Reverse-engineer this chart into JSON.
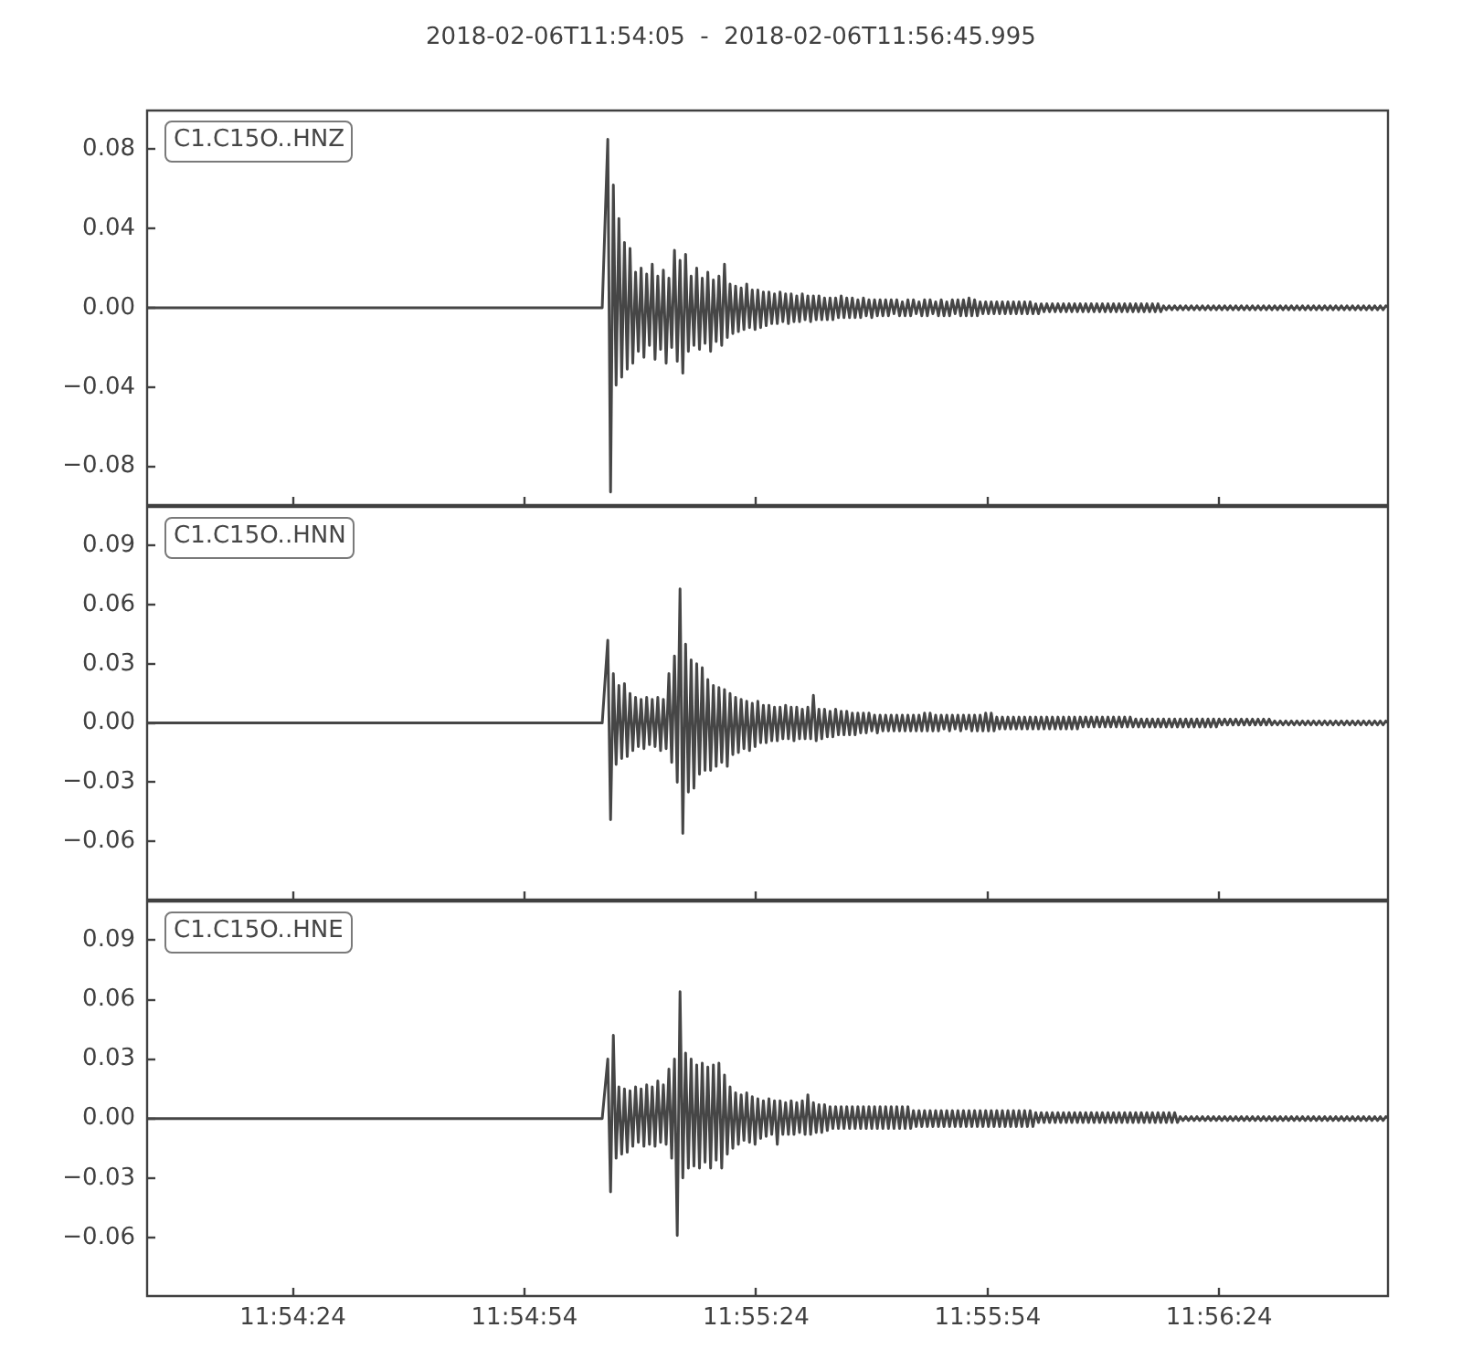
{
  "chart_data": [
    {
      "type": "line",
      "title": "2018-02-06T11:54:05  -  2018-02-06T11:56:45.995",
      "x": [
        11.901389,
        11.9178,
        11.918,
        11.9181,
        11.9182,
        11.9183,
        11.9184,
        11.9185,
        11.9186,
        11.9187,
        11.9188,
        11.9189,
        11.919,
        11.9191,
        11.9192,
        11.9193,
        11.9194,
        11.9195,
        11.9196,
        11.9197,
        11.9198,
        11.9199,
        11.92,
        11.9201,
        11.9202,
        11.9203,
        11.9204,
        11.9205,
        11.9206,
        11.9207,
        11.9208,
        11.9209,
        11.921,
        11.9211,
        11.9212,
        11.9213,
        11.9214,
        11.9215,
        11.9216,
        11.9217,
        11.9218,
        11.9219,
        11.922,
        11.9221,
        11.9222,
        11.9223,
        11.9224,
        11.9225,
        11.9226,
        11.9227,
        11.9228,
        11.9229,
        11.923,
        11.9231,
        11.9232,
        11.9233,
        11.9234,
        11.9235,
        11.9236,
        11.9237,
        11.9238,
        11.9239,
        11.924,
        11.9241,
        11.9242,
        11.9243,
        11.9244,
        11.9245,
        11.9246,
        11.9247,
        11.9248,
        11.9249,
        11.925,
        11.9251,
        11.9252,
        11.9253,
        11.9254,
        11.9255,
        11.9256,
        11.9257,
        11.9258,
        11.9259,
        11.926,
        11.9261,
        11.9262,
        11.9263,
        11.9264,
        11.9265,
        11.9266,
        11.9267,
        11.9268,
        11.9269,
        11.927,
        11.9271,
        11.9272,
        11.9273,
        11.9274,
        11.9275,
        11.9276,
        11.9277,
        11.9278,
        11.9279,
        11.928,
        11.9281,
        11.9282,
        11.9283,
        11.9284,
        11.9285,
        11.9286,
        11.9287,
        11.9288,
        11.9289,
        11.929,
        11.9291,
        11.9292,
        11.9293,
        11.9294,
        11.9295,
        11.9296,
        11.9297,
        11.9298,
        11.9299,
        11.93,
        11.9301,
        11.9302,
        11.9303,
        11.9304,
        11.9305,
        11.9306,
        11.9307,
        11.9308,
        11.9309,
        11.931,
        11.9311,
        11.9312,
        11.9313,
        11.9314,
        11.9315,
        11.9316,
        11.9317,
        11.9318,
        11.9319,
        11.932,
        11.9321,
        11.9322,
        11.9323,
        11.9324,
        11.9325,
        11.9326,
        11.9327,
        11.9328,
        11.9329,
        11.933,
        11.9331,
        11.9332,
        11.9333,
        11.9334,
        11.9335,
        11.9336,
        11.9337,
        11.9338,
        11.9339,
        11.934,
        11.9341,
        11.9342,
        11.9343,
        11.9344,
        11.9345,
        11.9346,
        11.9347,
        11.9348,
        11.9349,
        11.935,
        11.9351,
        11.9352,
        11.9353,
        11.9354,
        11.9355,
        11.9356,
        11.9357,
        11.9358,
        11.9359,
        11.936,
        11.9361,
        11.9362,
        11.9363,
        11.9364,
        11.9365,
        11.9366,
        11.9367,
        11.9368,
        11.9369,
        11.937,
        11.9371,
        11.9372,
        11.9373,
        11.9374,
        11.9375,
        11.9376,
        11.9377,
        11.9378,
        11.9379,
        11.938,
        11.9381,
        11.9382,
        11.9383,
        11.9384,
        11.9385,
        11.9386,
        11.9387,
        11.9388,
        11.9389,
        11.939,
        11.9391,
        11.9392,
        11.9393,
        11.9394,
        11.9395,
        11.9396,
        11.9397,
        11.9398,
        11.9399,
        11.94,
        11.9401,
        11.9402,
        11.9403,
        11.9404,
        11.9405,
        11.9406,
        11.9407,
        11.9408,
        11.9409,
        11.941,
        11.9411,
        11.9412,
        11.9413,
        11.9414,
        11.9415,
        11.9416,
        11.9417,
        11.9418,
        11.9419,
        11.942,
        11.9421,
        11.9422,
        11.9423,
        11.9424,
        11.9425,
        11.9426,
        11.9427,
        11.9428,
        11.9429,
        11.943,
        11.9431,
        11.9432,
        11.9433,
        11.9434,
        11.9435,
        11.9436,
        11.9437,
        11.9438,
        11.9439,
        11.944,
        11.9441,
        11.9442,
        11.9443,
        11.9444,
        11.9445,
        11.9446,
        11.9447,
        11.9448,
        11.9449,
        11.945,
        11.9451,
        11.9452,
        11.9453,
        11.9454,
        11.9455,
        11.9456,
        11.9457,
        11.9458,
        11.9459,
        11.946,
        11.94611
      ],
      "series": [
        {
          "name": "C1.C15O..HNZ",
          "color": "#464646",
          "values": [
            0,
            0,
            0.085,
            -0.093,
            0.062,
            -0.039,
            0.045,
            -0.035,
            0.033,
            -0.031,
            0.03,
            -0.028,
            0.018,
            -0.022,
            0.02,
            -0.025,
            0.017,
            -0.019,
            0.022,
            -0.026,
            0.016,
            -0.021,
            0.019,
            -0.028,
            0.015,
            -0.02,
            0.029,
            -0.027,
            0.024,
            -0.033,
            0.027,
            -0.022,
            0.016,
            -0.019,
            0.02,
            -0.021,
            0.015,
            -0.018,
            0.018,
            -0.022,
            0.014,
            -0.017,
            0.016,
            -0.019,
            0.022,
            -0.015,
            0.012,
            -0.013,
            0.011,
            -0.012,
            0.01,
            -0.011,
            0.012,
            -0.01,
            0.009,
            -0.011,
            0.009,
            -0.01,
            0.008,
            -0.009,
            0.008,
            -0.008,
            0.007,
            -0.008,
            0.008,
            -0.007,
            0.007,
            -0.008,
            0.007,
            -0.007,
            0.006,
            -0.007,
            0.007,
            -0.006,
            0.006,
            -0.007,
            0.006,
            -0.006,
            0.006,
            -0.006,
            0.005,
            -0.006,
            0.005,
            -0.006,
            0.005,
            -0.005,
            0.006,
            -0.005,
            0.005,
            -0.005,
            0.005,
            -0.005,
            0.004,
            -0.005,
            0.005,
            -0.004,
            0.004,
            -0.005,
            0.004,
            -0.004,
            0.004,
            -0.004,
            0.004,
            -0.004,
            0.004,
            -0.003,
            0.004,
            -0.004,
            0.003,
            -0.004,
            0.004,
            -0.004,
            0.004,
            -0.003,
            0.003,
            -0.004,
            0.004,
            -0.004,
            0.004,
            -0.003,
            0.003,
            -0.004,
            0.004,
            -0.004,
            0.003,
            -0.004,
            0.004,
            -0.003,
            0.004,
            -0.004,
            0.004,
            -0.004,
            0.005,
            -0.004,
            0.004,
            -0.004,
            0.003,
            -0.003,
            0.003,
            -0.003,
            0.003,
            -0.003,
            0.003,
            -0.003,
            0.003,
            -0.003,
            0.003,
            -0.003,
            0.003,
            -0.003,
            0.003,
            -0.003,
            0.003,
            -0.003,
            0.003,
            -0.003,
            0.002,
            -0.003,
            0.002,
            -0.002,
            0.002,
            -0.002,
            0.002,
            -0.002,
            0.002,
            -0.002,
            0.002,
            -0.002,
            0.002,
            -0.002,
            0.002,
            -0.002,
            0.002,
            -0.002,
            0.002,
            -0.002,
            0.002,
            -0.002,
            0.002,
            -0.002,
            0.002,
            -0.002,
            0.002,
            -0.002,
            0.002,
            -0.002,
            0.002,
            -0.002,
            0.002,
            -0.002,
            0.002,
            -0.002,
            0.002,
            -0.002,
            0.002,
            -0.002,
            0.002,
            -0.002,
            0.002,
            -0.002,
            0.002,
            -0.002,
            0.001,
            -0.001,
            0.001,
            -0.001,
            0.001,
            -0.001,
            0.001,
            -0.001,
            0.001,
            -0.001,
            0.001,
            -0.001,
            0.001,
            -0.001,
            0.001,
            -0.001,
            0.001,
            -0.001,
            0.001,
            -0.001,
            0.001,
            -0.001,
            0.001,
            -0.001,
            0.001,
            -0.001,
            0.001,
            -0.001,
            0.001,
            -0.001,
            0.001,
            -0.001,
            0.001,
            -0.001,
            0.001,
            -0.001,
            0.001,
            -0.001,
            0.001,
            -0.001,
            0.001,
            -0.001,
            0.001,
            -0.001,
            0.001,
            -0.001,
            0.001,
            -0.001,
            0.001,
            -0.001,
            0.001,
            -0.001,
            0.001,
            -0.001,
            0.001,
            -0.001,
            0.001,
            -0.001,
            0.001,
            -0.001,
            0.001,
            -0.001,
            0.001,
            -0.001,
            0.001,
            -0.001,
            0.001,
            -0.001,
            0.001,
            -0.001,
            0.001,
            -0.001,
            0.001,
            -0.001,
            0.001,
            -0.001,
            0.001,
            -0.001,
            0.001,
            -0.001,
            0.001,
            0
          ]
        }
      ],
      "xlim": [
        11.901389,
        11.94611
      ],
      "xticks": [
        {
          "value": 11.906667,
          "label": null
        },
        {
          "value": 11.915,
          "label": null
        },
        {
          "value": 11.923333,
          "label": null
        },
        {
          "value": 11.931667,
          "label": null
        },
        {
          "value": 11.94,
          "label": null
        }
      ],
      "ylim": [
        -0.1,
        0.1
      ],
      "yticks": [
        0.08,
        0.04,
        {
          "value": 0,
          "label": "0.00"
        },
        {
          "value": -0.04,
          "label": "−0.04"
        },
        {
          "value": -0.08,
          "label": "−0.08"
        }
      ],
      "legend": "top left",
      "tick_labels": "y"
    },
    {
      "type": "line",
      "x": [
        11.901389,
        11.9178,
        11.918,
        11.9181,
        11.9182,
        11.9183,
        11.9184,
        11.9185,
        11.9186,
        11.9187,
        11.9188,
        11.9189,
        11.919,
        11.9191,
        11.9192,
        11.9193,
        11.9194,
        11.9195,
        11.9196,
        11.9197,
        11.9198,
        11.9199,
        11.92,
        11.9201,
        11.9202,
        11.9203,
        11.9204,
        11.9205,
        11.9206,
        11.9207,
        11.9208,
        11.9209,
        11.921,
        11.9211,
        11.9212,
        11.9213,
        11.9214,
        11.9215,
        11.9216,
        11.9217,
        11.9218,
        11.9219,
        11.922,
        11.9221,
        11.9222,
        11.9223,
        11.9224,
        11.9225,
        11.9226,
        11.9227,
        11.9228,
        11.9229,
        11.923,
        11.9231,
        11.9232,
        11.9233,
        11.9234,
        11.9235,
        11.9236,
        11.9237,
        11.9238,
        11.9239,
        11.924,
        11.9241,
        11.9242,
        11.9243,
        11.9244,
        11.9245,
        11.9246,
        11.9247,
        11.9248,
        11.9249,
        11.925,
        11.9251,
        11.9252,
        11.9253,
        11.9254,
        11.9255,
        11.9256,
        11.9257,
        11.9258,
        11.9259,
        11.926,
        11.9261,
        11.9262,
        11.9263,
        11.9264,
        11.9265,
        11.9266,
        11.9267,
        11.9268,
        11.9269,
        11.927,
        11.9271,
        11.9272,
        11.9273,
        11.9274,
        11.9275,
        11.9276,
        11.9277,
        11.9278,
        11.9279,
        11.928,
        11.9281,
        11.9282,
        11.9283,
        11.9284,
        11.9285,
        11.9286,
        11.9287,
        11.9288,
        11.9289,
        11.929,
        11.9291,
        11.9292,
        11.9293,
        11.9294,
        11.9295,
        11.9296,
        11.9297,
        11.9298,
        11.9299,
        11.93,
        11.9301,
        11.9302,
        11.9303,
        11.9304,
        11.9305,
        11.9306,
        11.9307,
        11.9308,
        11.9309,
        11.931,
        11.9311,
        11.9312,
        11.9313,
        11.9314,
        11.9315,
        11.9316,
        11.9317,
        11.9318,
        11.9319,
        11.932,
        11.9321,
        11.9322,
        11.9323,
        11.9324,
        11.9325,
        11.9326,
        11.9327,
        11.9328,
        11.9329,
        11.933,
        11.9331,
        11.9332,
        11.9333,
        11.9334,
        11.9335,
        11.9336,
        11.9337,
        11.9338,
        11.9339,
        11.934,
        11.9341,
        11.9342,
        11.9343,
        11.9344,
        11.9345,
        11.9346,
        11.9347,
        11.9348,
        11.9349,
        11.935,
        11.9351,
        11.9352,
        11.9353,
        11.9354,
        11.9355,
        11.9356,
        11.9357,
        11.9358,
        11.9359,
        11.936,
        11.9361,
        11.9362,
        11.9363,
        11.9364,
        11.9365,
        11.9366,
        11.9367,
        11.9368,
        11.9369,
        11.937,
        11.9371,
        11.9372,
        11.9373,
        11.9374,
        11.9375,
        11.9376,
        11.9377,
        11.9378,
        11.9379,
        11.938,
        11.9381,
        11.9382,
        11.9383,
        11.9384,
        11.9385,
        11.9386,
        11.9387,
        11.9388,
        11.9389,
        11.939,
        11.9391,
        11.9392,
        11.9393,
        11.9394,
        11.9395,
        11.9396,
        11.9397,
        11.9398,
        11.9399,
        11.94,
        11.9401,
        11.9402,
        11.9403,
        11.9404,
        11.9405,
        11.9406,
        11.9407,
        11.9408,
        11.9409,
        11.941,
        11.9411,
        11.9412,
        11.9413,
        11.9414,
        11.9415,
        11.9416,
        11.9417,
        11.9418,
        11.9419,
        11.942,
        11.9421,
        11.9422,
        11.9423,
        11.9424,
        11.9425,
        11.9426,
        11.9427,
        11.9428,
        11.9429,
        11.943,
        11.9431,
        11.9432,
        11.9433,
        11.9434,
        11.9435,
        11.9436,
        11.9437,
        11.9438,
        11.9439,
        11.944,
        11.9441,
        11.9442,
        11.9443,
        11.9444,
        11.9445,
        11.9446,
        11.9447,
        11.9448,
        11.9449,
        11.945,
        11.9451,
        11.9452,
        11.9453,
        11.9454,
        11.9455,
        11.9456,
        11.9457,
        11.9458,
        11.9459,
        11.946,
        11.94611
      ],
      "series": [
        {
          "name": "C1.C15O..HNN",
          "color": "#464646",
          "values": [
            0,
            0,
            0.042,
            -0.049,
            0.025,
            -0.021,
            0.019,
            -0.018,
            0.02,
            -0.017,
            0.015,
            -0.014,
            0.013,
            -0.012,
            0.012,
            -0.013,
            0.013,
            -0.011,
            0.012,
            -0.012,
            0.013,
            -0.014,
            0.012,
            -0.013,
            0.025,
            -0.02,
            0.034,
            -0.03,
            0.068,
            -0.056,
            0.04,
            -0.035,
            0.032,
            -0.033,
            0.03,
            -0.026,
            0.028,
            -0.024,
            0.022,
            -0.024,
            0.019,
            -0.022,
            0.018,
            -0.02,
            0.017,
            -0.022,
            0.015,
            -0.016,
            0.013,
            -0.015,
            0.012,
            -0.013,
            0.011,
            -0.014,
            0.01,
            -0.012,
            0.011,
            -0.01,
            0.009,
            -0.01,
            0.009,
            -0.009,
            0.008,
            -0.009,
            0.008,
            -0.008,
            0.009,
            -0.008,
            0.008,
            -0.009,
            0.008,
            -0.008,
            0.007,
            -0.008,
            0.008,
            -0.008,
            0.014,
            -0.009,
            0.007,
            -0.008,
            0.007,
            -0.007,
            0.006,
            -0.007,
            0.007,
            -0.006,
            0.006,
            -0.006,
            0.006,
            -0.006,
            0.005,
            -0.006,
            0.005,
            -0.005,
            0.005,
            -0.005,
            0.005,
            -0.004,
            0.004,
            -0.005,
            0.004,
            -0.004,
            0.004,
            -0.004,
            0.004,
            -0.004,
            0.004,
            -0.004,
            0.004,
            -0.004,
            0.004,
            -0.004,
            0.004,
            -0.004,
            0.004,
            -0.004,
            0.005,
            -0.004,
            0.005,
            -0.004,
            0.004,
            -0.004,
            0.004,
            -0.003,
            0.004,
            -0.004,
            0.004,
            -0.003,
            0.004,
            -0.004,
            0.004,
            -0.003,
            0.004,
            -0.004,
            0.004,
            -0.004,
            0.004,
            -0.004,
            0.005,
            -0.004,
            0.005,
            -0.004,
            0.003,
            -0.003,
            0.003,
            -0.003,
            0.003,
            -0.003,
            0.003,
            -0.003,
            0.003,
            -0.003,
            0.003,
            -0.003,
            0.003,
            -0.003,
            0.003,
            -0.003,
            0.003,
            -0.003,
            0.003,
            -0.003,
            0.003,
            -0.003,
            0.003,
            -0.003,
            0.003,
            -0.003,
            0.003,
            -0.003,
            0.003,
            -0.003,
            0.003,
            -0.002,
            0.003,
            -0.002,
            0.003,
            -0.002,
            0.003,
            -0.002,
            0.003,
            -0.002,
            0.003,
            -0.002,
            0.003,
            -0.002,
            0.003,
            -0.002,
            0.003,
            -0.002,
            0.003,
            -0.002,
            0.002,
            -0.002,
            0.002,
            -0.002,
            0.002,
            -0.002,
            0.002,
            -0.002,
            0.002,
            -0.002,
            0.002,
            -0.002,
            0.002,
            -0.002,
            0.002,
            -0.002,
            0.002,
            -0.002,
            0.002,
            -0.002,
            0.002,
            -0.002,
            0.002,
            -0.002,
            0.002,
            -0.002,
            0.002,
            -0.002,
            0.002,
            -0.002,
            0.002,
            -0.001,
            0.002,
            -0.001,
            0.002,
            -0.001,
            0.002,
            -0.001,
            0.002,
            -0.001,
            0.002,
            -0.001,
            0.002,
            -0.001,
            0.002,
            -0.001,
            0.002,
            -0.001,
            0.002,
            -0.001,
            0.001,
            -0.001,
            0.001,
            -0.001,
            0.001,
            -0.001,
            0.001,
            -0.001,
            0.001,
            -0.001,
            0.001,
            -0.001,
            0.001,
            -0.001,
            0.001,
            -0.001,
            0.001,
            -0.001,
            0.001,
            -0.001,
            0.001,
            -0.001,
            0.001,
            -0.001,
            0.001,
            -0.001,
            0.001,
            -0.001,
            0.001,
            -0.001,
            0.001,
            -0.001,
            0.001,
            -0.001,
            0.001,
            -0.001,
            0.001,
            -0.001,
            0.001,
            -0.001,
            0.001,
            0
          ]
        }
      ],
      "xlim": [
        11.901389,
        11.94611
      ],
      "xticks": [
        {
          "value": 11.906667,
          "label": null
        },
        {
          "value": 11.915,
          "label": null
        },
        {
          "value": 11.923333,
          "label": null
        },
        {
          "value": 11.931667,
          "label": null
        },
        {
          "value": 11.94,
          "label": null
        }
      ],
      "ylim": [
        -0.09,
        0.11
      ],
      "yticks": [
        0.09,
        0.06,
        0.03,
        {
          "value": 0,
          "label": "0.00"
        },
        {
          "value": -0.03,
          "label": "−0.03"
        },
        {
          "value": -0.06,
          "label": "−0.06"
        }
      ],
      "legend": "top left",
      "tick_labels": "y"
    },
    {
      "type": "line",
      "x": [
        11.901389,
        11.9178,
        11.918,
        11.9181,
        11.9182,
        11.9183,
        11.9184,
        11.9185,
        11.9186,
        11.9187,
        11.9188,
        11.9189,
        11.919,
        11.9191,
        11.9192,
        11.9193,
        11.9194,
        11.9195,
        11.9196,
        11.9197,
        11.9198,
        11.9199,
        11.92,
        11.9201,
        11.9202,
        11.9203,
        11.9204,
        11.9205,
        11.9206,
        11.9207,
        11.9208,
        11.9209,
        11.921,
        11.9211,
        11.9212,
        11.9213,
        11.9214,
        11.9215,
        11.9216,
        11.9217,
        11.9218,
        11.9219,
        11.922,
        11.9221,
        11.9222,
        11.9223,
        11.9224,
        11.9225,
        11.9226,
        11.9227,
        11.9228,
        11.9229,
        11.923,
        11.9231,
        11.9232,
        11.9233,
        11.9234,
        11.9235,
        11.9236,
        11.9237,
        11.9238,
        11.9239,
        11.924,
        11.9241,
        11.9242,
        11.9243,
        11.9244,
        11.9245,
        11.9246,
        11.9247,
        11.9248,
        11.9249,
        11.925,
        11.9251,
        11.9252,
        11.9253,
        11.9254,
        11.9255,
        11.9256,
        11.9257,
        11.9258,
        11.9259,
        11.926,
        11.9261,
        11.9262,
        11.9263,
        11.9264,
        11.9265,
        11.9266,
        11.9267,
        11.9268,
        11.9269,
        11.927,
        11.9271,
        11.9272,
        11.9273,
        11.9274,
        11.9275,
        11.9276,
        11.9277,
        11.9278,
        11.9279,
        11.928,
        11.9281,
        11.9282,
        11.9283,
        11.9284,
        11.9285,
        11.9286,
        11.9287,
        11.9288,
        11.9289,
        11.929,
        11.9291,
        11.9292,
        11.9293,
        11.9294,
        11.9295,
        11.9296,
        11.9297,
        11.9298,
        11.9299,
        11.93,
        11.9301,
        11.9302,
        11.9303,
        11.9304,
        11.9305,
        11.9306,
        11.9307,
        11.9308,
        11.9309,
        11.931,
        11.9311,
        11.9312,
        11.9313,
        11.9314,
        11.9315,
        11.9316,
        11.9317,
        11.9318,
        11.9319,
        11.932,
        11.9321,
        11.9322,
        11.9323,
        11.9324,
        11.9325,
        11.9326,
        11.9327,
        11.9328,
        11.9329,
        11.933,
        11.9331,
        11.9332,
        11.9333,
        11.9334,
        11.9335,
        11.9336,
        11.9337,
        11.9338,
        11.9339,
        11.934,
        11.9341,
        11.9342,
        11.9343,
        11.9344,
        11.9345,
        11.9346,
        11.9347,
        11.9348,
        11.9349,
        11.935,
        11.9351,
        11.9352,
        11.9353,
        11.9354,
        11.9355,
        11.9356,
        11.9357,
        11.9358,
        11.9359,
        11.936,
        11.9361,
        11.9362,
        11.9363,
        11.9364,
        11.9365,
        11.9366,
        11.9367,
        11.9368,
        11.9369,
        11.937,
        11.9371,
        11.9372,
        11.9373,
        11.9374,
        11.9375,
        11.9376,
        11.9377,
        11.9378,
        11.9379,
        11.938,
        11.9381,
        11.9382,
        11.9383,
        11.9384,
        11.9385,
        11.9386,
        11.9387,
        11.9388,
        11.9389,
        11.939,
        11.9391,
        11.9392,
        11.9393,
        11.9394,
        11.9395,
        11.9396,
        11.9397,
        11.9398,
        11.9399,
        11.94,
        11.9401,
        11.9402,
        11.9403,
        11.9404,
        11.9405,
        11.9406,
        11.9407,
        11.9408,
        11.9409,
        11.941,
        11.9411,
        11.9412,
        11.9413,
        11.9414,
        11.9415,
        11.9416,
        11.9417,
        11.9418,
        11.9419,
        11.942,
        11.9421,
        11.9422,
        11.9423,
        11.9424,
        11.9425,
        11.9426,
        11.9427,
        11.9428,
        11.9429,
        11.943,
        11.9431,
        11.9432,
        11.9433,
        11.9434,
        11.9435,
        11.9436,
        11.9437,
        11.9438,
        11.9439,
        11.944,
        11.9441,
        11.9442,
        11.9443,
        11.9444,
        11.9445,
        11.9446,
        11.9447,
        11.9448,
        11.9449,
        11.945,
        11.9451,
        11.9452,
        11.9453,
        11.9454,
        11.9455,
        11.9456,
        11.9457,
        11.9458,
        11.9459,
        11.946,
        11.94611
      ],
      "series": [
        {
          "name": "C1.C15O..HNE",
          "color": "#464646",
          "values": [
            0,
            0,
            0.03,
            -0.037,
            0.042,
            -0.02,
            0.016,
            -0.018,
            0.015,
            -0.017,
            0.014,
            -0.014,
            0.016,
            -0.012,
            0.015,
            -0.014,
            0.017,
            -0.013,
            0.016,
            -0.014,
            0.019,
            -0.012,
            0.017,
            -0.013,
            0.025,
            -0.02,
            0.03,
            -0.059,
            0.064,
            -0.03,
            0.033,
            -0.025,
            0.03,
            -0.024,
            0.027,
            -0.025,
            0.028,
            -0.022,
            0.026,
            -0.025,
            0.027,
            -0.021,
            0.028,
            -0.025,
            0.022,
            -0.018,
            0.016,
            -0.015,
            0.013,
            -0.013,
            0.012,
            -0.011,
            0.013,
            -0.012,
            0.011,
            -0.013,
            0.01,
            -0.01,
            0.009,
            -0.009,
            0.01,
            -0.008,
            0.009,
            -0.013,
            0.009,
            -0.008,
            0.008,
            -0.008,
            0.009,
            -0.008,
            0.008,
            -0.007,
            0.009,
            -0.008,
            0.012,
            -0.008,
            0.008,
            -0.007,
            0.007,
            -0.007,
            0.007,
            -0.006,
            0.006,
            -0.005,
            0.006,
            -0.005,
            0.006,
            -0.005,
            0.006,
            -0.005,
            0.006,
            -0.005,
            0.006,
            -0.005,
            0.006,
            -0.005,
            0.006,
            -0.005,
            0.006,
            -0.005,
            0.006,
            -0.005,
            0.006,
            -0.005,
            0.006,
            -0.005,
            0.006,
            -0.005,
            0.006,
            -0.005,
            0.006,
            -0.005,
            0.004,
            -0.004,
            0.004,
            -0.004,
            0.004,
            -0.004,
            0.004,
            -0.004,
            0.004,
            -0.004,
            0.004,
            -0.004,
            0.004,
            -0.004,
            0.004,
            -0.004,
            0.004,
            -0.004,
            0.004,
            -0.004,
            0.004,
            -0.004,
            0.004,
            -0.004,
            0.004,
            -0.004,
            0.004,
            -0.004,
            0.004,
            -0.004,
            0.004,
            -0.004,
            0.004,
            -0.004,
            0.004,
            -0.004,
            0.004,
            -0.004,
            0.004,
            -0.004,
            0.004,
            -0.004,
            0.004,
            -0.004,
            0.003,
            -0.002,
            0.003,
            -0.002,
            0.003,
            -0.002,
            0.003,
            -0.002,
            0.003,
            -0.002,
            0.003,
            -0.002,
            0.003,
            -0.002,
            0.003,
            -0.002,
            0.003,
            -0.002,
            0.003,
            -0.002,
            0.003,
            -0.002,
            0.003,
            -0.002,
            0.003,
            -0.002,
            0.003,
            -0.002,
            0.003,
            -0.002,
            0.003,
            -0.002,
            0.003,
            -0.002,
            0.003,
            -0.002,
            0.003,
            -0.002,
            0.003,
            -0.002,
            0.003,
            -0.002,
            0.003,
            -0.002,
            0.003,
            -0.002,
            0.003,
            -0.002,
            0.003,
            -0.002,
            0.003,
            -0.002,
            0.001,
            -0.001,
            0.001,
            -0.001,
            0.001,
            -0.001,
            0.001,
            -0.001,
            0.001,
            -0.001,
            0.001,
            -0.001,
            0.001,
            -0.001,
            0.001,
            -0.001,
            0.001,
            -0.001,
            0.001,
            -0.001,
            0.001,
            -0.001,
            0.001,
            -0.001,
            0.001,
            -0.001,
            0.001,
            -0.001,
            0.001,
            -0.001,
            0.001,
            -0.001,
            0.001,
            -0.001,
            0.001,
            -0.001,
            0.001,
            -0.001,
            0.001,
            -0.001,
            0.001,
            -0.001,
            0.001,
            -0.001,
            0.001,
            -0.001,
            0.001,
            -0.001,
            0.001,
            -0.001,
            0.001,
            -0.001,
            0.001,
            -0.001,
            0.001,
            -0.001,
            0.001,
            -0.001,
            0.001,
            -0.001,
            0.001,
            -0.001,
            0.001,
            -0.001,
            0.001,
            -0.001,
            0.001,
            -0.001,
            0.001,
            -0.001,
            0.001,
            -0.001,
            0.001,
            -0.001,
            0.001,
            0
          ]
        }
      ],
      "xlim": [
        11.901389,
        11.94611
      ],
      "xticks": [
        {
          "value": 11.906667,
          "label": "11:54:24"
        },
        {
          "value": 11.915,
          "label": "11:54:54"
        },
        {
          "value": 11.923333,
          "label": "11:55:24"
        },
        {
          "value": 11.931667,
          "label": "11:55:54"
        },
        {
          "value": 11.94,
          "label": "11:56:24"
        }
      ],
      "ylim": [
        -0.09,
        0.11
      ],
      "yticks": [
        0.09,
        0.06,
        0.03,
        {
          "value": 0,
          "label": "0.00"
        },
        {
          "value": -0.03,
          "label": "−0.03"
        },
        {
          "value": -0.06,
          "label": "−0.06"
        }
      ],
      "legend": "top left"
    }
  ]
}
